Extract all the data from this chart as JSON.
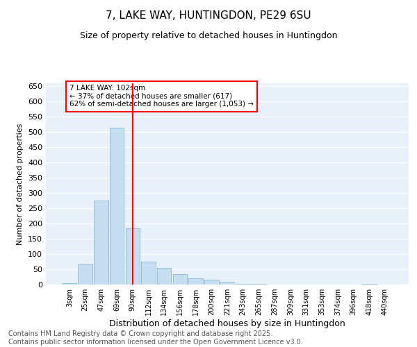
{
  "title": "7, LAKE WAY, HUNTINGDON, PE29 6SU",
  "subtitle": "Size of property relative to detached houses in Huntingdon",
  "xlabel": "Distribution of detached houses by size in Huntingdon",
  "ylabel": "Number of detached properties",
  "bins": [
    "3sqm",
    "25sqm",
    "47sqm",
    "69sqm",
    "90sqm",
    "112sqm",
    "134sqm",
    "156sqm",
    "178sqm",
    "200sqm",
    "221sqm",
    "243sqm",
    "265sqm",
    "287sqm",
    "309sqm",
    "331sqm",
    "353sqm",
    "374sqm",
    "396sqm",
    "418sqm",
    "440sqm"
  ],
  "values": [
    5,
    65,
    275,
    515,
    185,
    75,
    55,
    35,
    20,
    15,
    8,
    3,
    3,
    0,
    0,
    0,
    0,
    0,
    0,
    3,
    0
  ],
  "bar_color": "#c6dff0",
  "bar_edge_color": "#89b8d4",
  "vline_color": "red",
  "vline_x_index": 4.5,
  "annotation_text": "7 LAKE WAY: 102sqm\n← 37% of detached houses are smaller (617)\n62% of semi-detached houses are larger (1,053) →",
  "annotation_box_color": "white",
  "annotation_box_edge": "red",
  "ylim": [
    0,
    660
  ],
  "yticks": [
    0,
    50,
    100,
    150,
    200,
    250,
    300,
    350,
    400,
    450,
    500,
    550,
    600,
    650
  ],
  "bg_color": "#e8f0fa",
  "grid_color": "white",
  "footer": "Contains HM Land Registry data © Crown copyright and database right 2025.\nContains public sector information licensed under the Open Government Licence v3.0.",
  "title_fontsize": 11,
  "subtitle_fontsize": 9,
  "ylabel_fontsize": 8,
  "xlabel_fontsize": 9,
  "footer_fontsize": 7
}
